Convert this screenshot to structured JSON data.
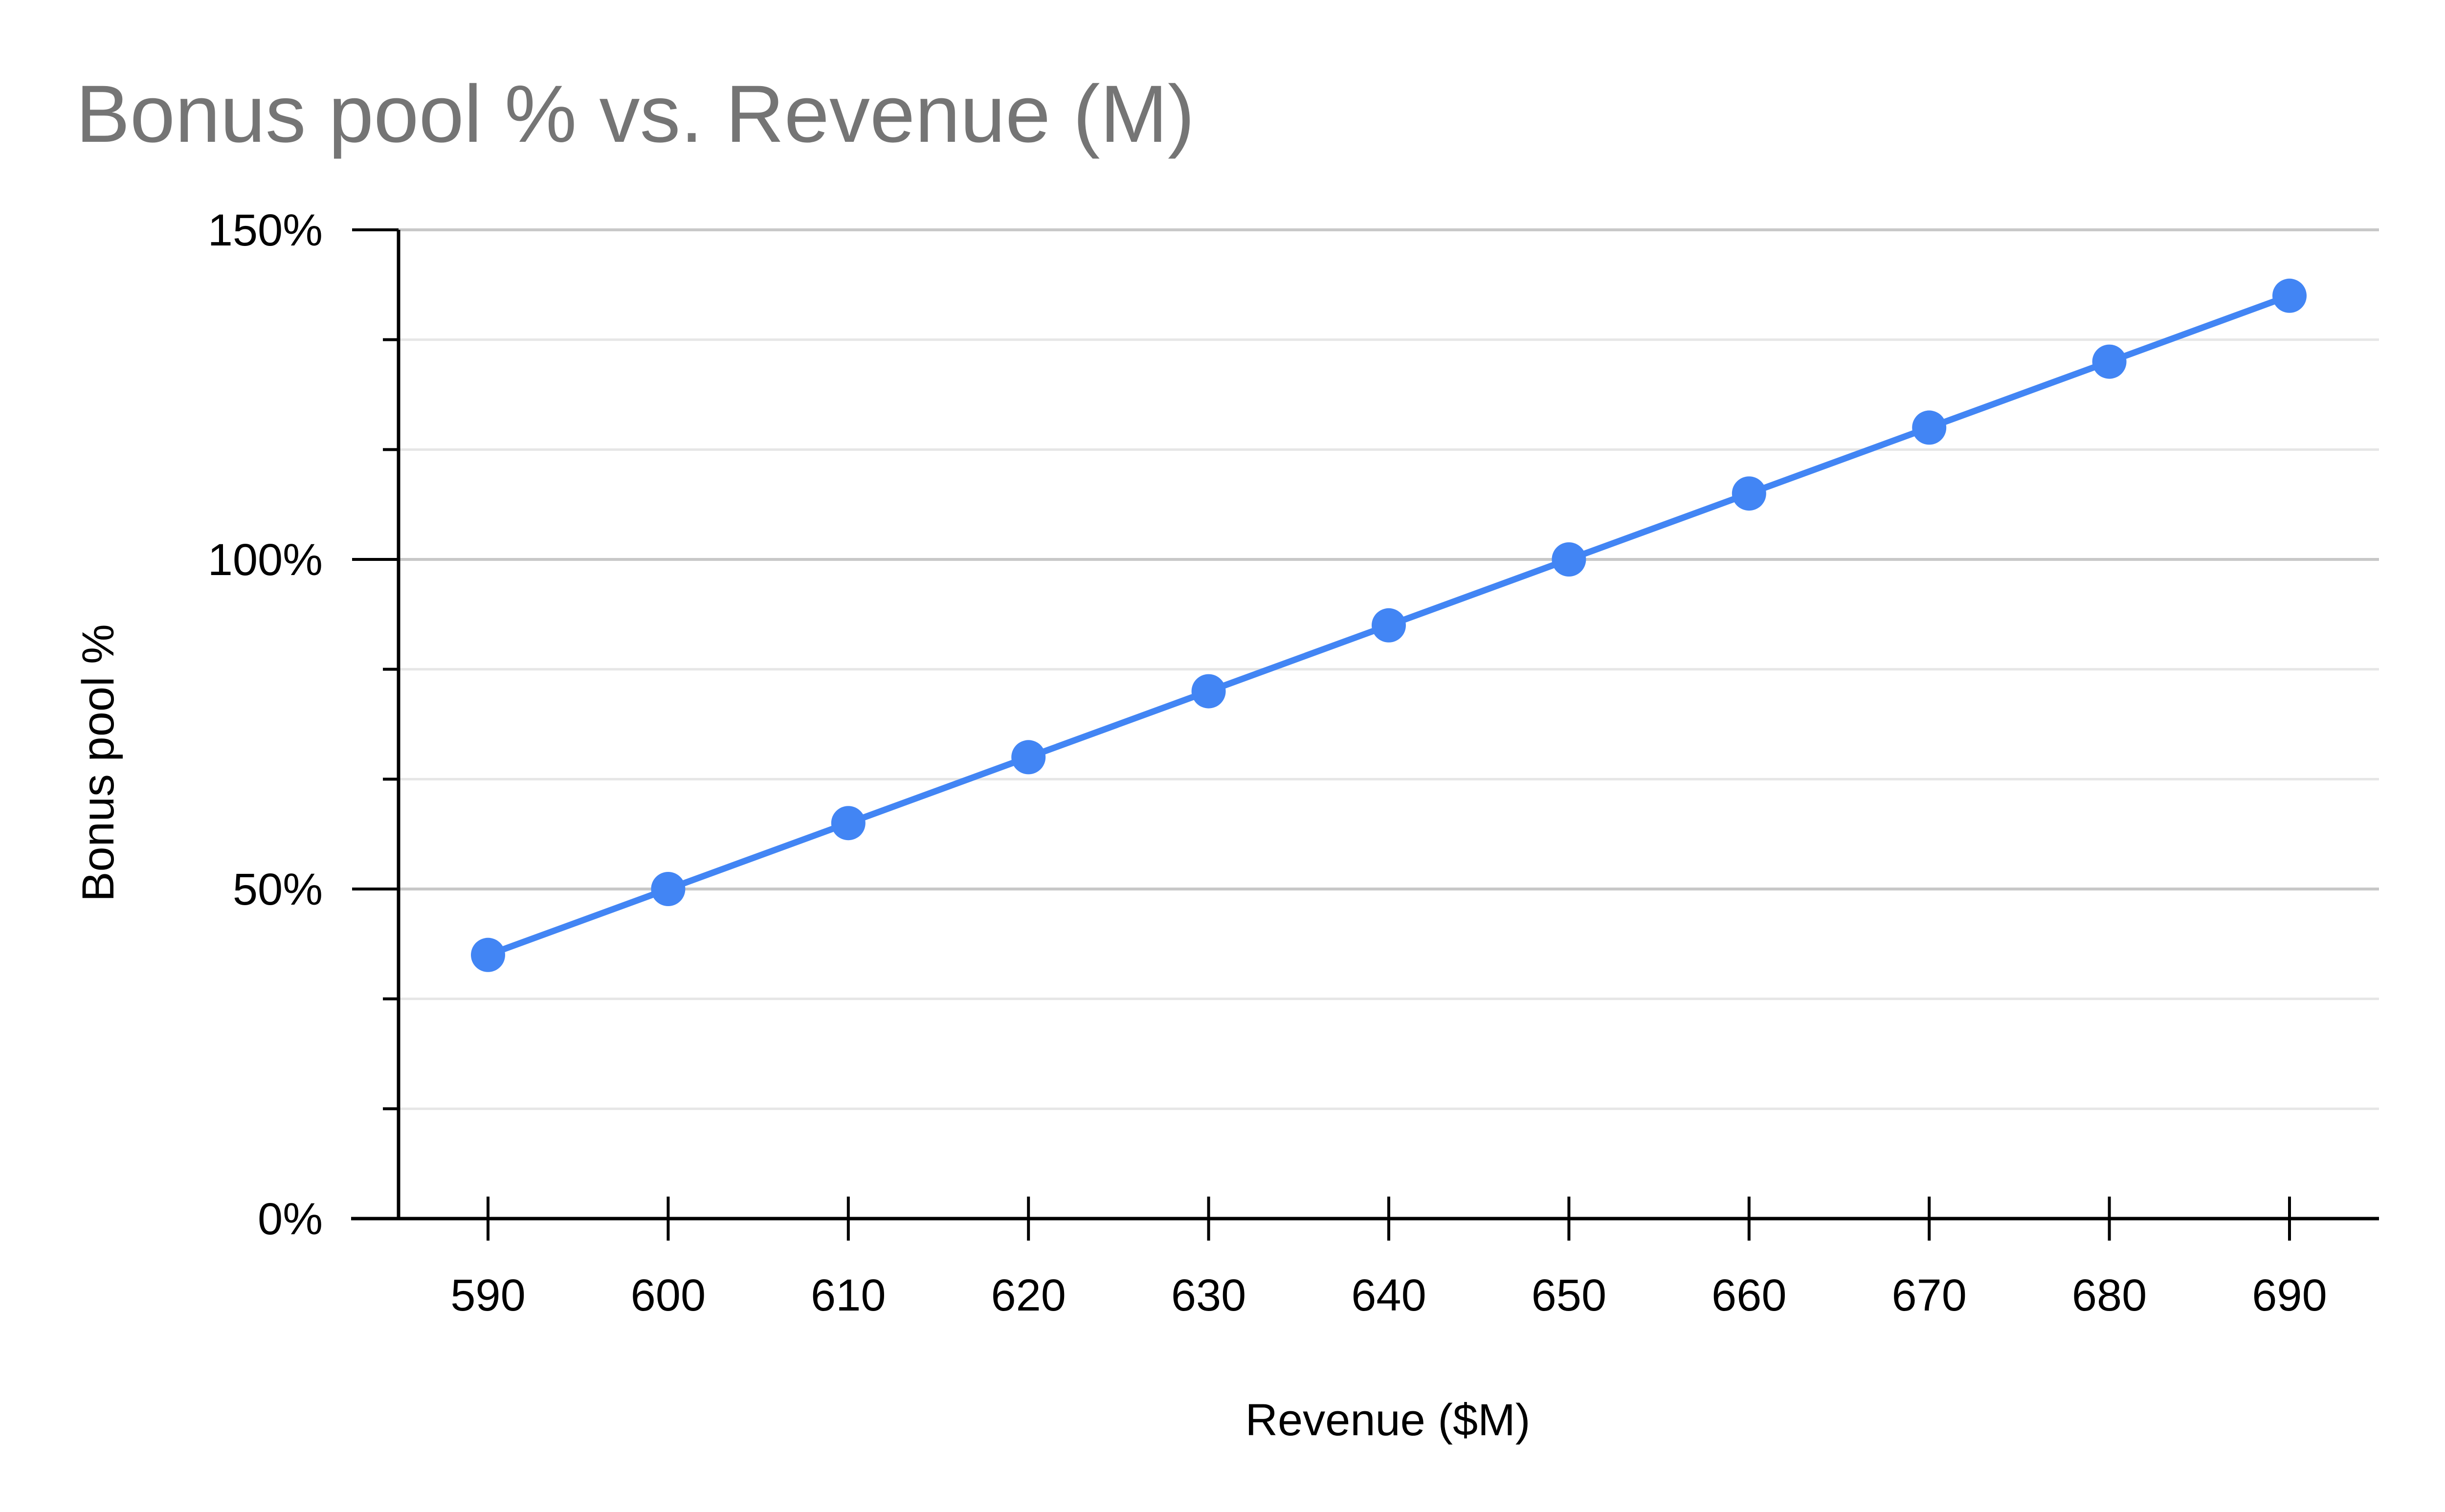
{
  "chart_data": {
    "type": "line",
    "title": "Bonus pool % vs. Revenue (M)",
    "xlabel": "Revenue ($M)",
    "ylabel": "Bonus pool %",
    "x": [
      590,
      600,
      610,
      620,
      630,
      640,
      650,
      660,
      670,
      680,
      690
    ],
    "series": [
      {
        "values": [
          40,
          50,
          60,
          70,
          80,
          90,
          100,
          110,
          120,
          130,
          140
        ],
        "color": "#4285f4",
        "markers": true
      }
    ],
    "xlim": [
      585,
      690
    ],
    "ylim": [
      0,
      150
    ],
    "x_ticks": [
      590,
      600,
      610,
      620,
      630,
      640,
      650,
      660,
      670,
      680,
      690
    ],
    "x_tick_labels": [
      "590",
      "600",
      "610",
      "620",
      "630",
      "640",
      "650",
      "660",
      "670",
      "680",
      "690"
    ],
    "y_ticks": [
      0,
      50,
      100,
      150
    ],
    "y_tick_labels": [
      "0%",
      "50%",
      "100%",
      "150%"
    ],
    "y_minor_step": 16.67,
    "grid": true,
    "legend": "none"
  }
}
